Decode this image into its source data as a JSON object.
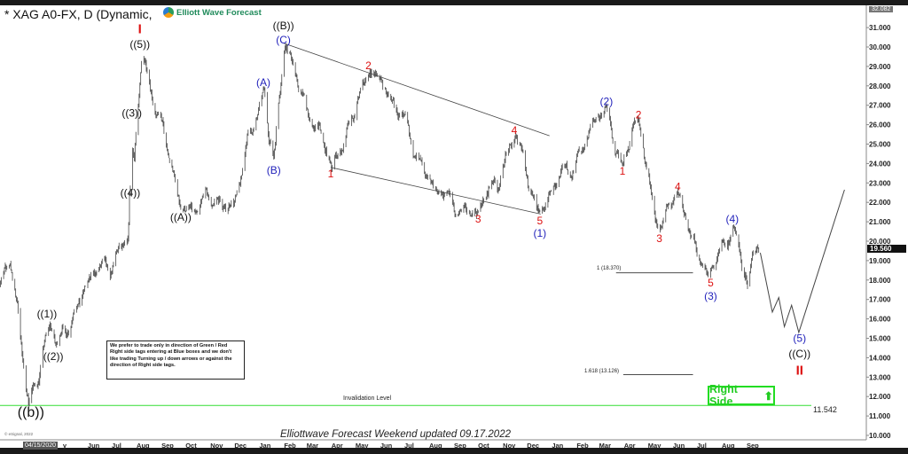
{
  "header": {
    "title": "* XAG A0-FX, D (Dynamic,",
    "logo_text": "Elliott Wave Forecast"
  },
  "note": "We prefer to trade only in direction of Green / Red Right side tags entering at Blue boxes and we don't like trading Turning up / down arrows or against the direction of Right side tags.",
  "right_side": {
    "label": "Right Side",
    "icon": "arrow-up-icon",
    "color": "#22cc22"
  },
  "footer": "Elliottwave Forecast Weekend updated 09.17.2022",
  "copyright": "© eSignal, 2022",
  "date_tag": "04/15/2020",
  "chart_data": {
    "type": "ohlc",
    "symbol": "XAG A0-FX",
    "interval": "D",
    "ylim": [
      10,
      31
    ],
    "y_ticks": [
      "31.000",
      "30.000",
      "29.000",
      "28.000",
      "27.000",
      "26.000",
      "25.000",
      "24.000",
      "23.000",
      "22.000",
      "21.000",
      "20.000",
      "19.000",
      "18.000",
      "17.000",
      "16.000",
      "15.000",
      "14.000",
      "13.000",
      "12.000",
      "11.000",
      "10.000"
    ],
    "top_tag": "32.082",
    "last_price": "19.560",
    "x_ticks": [
      {
        "label": "y",
        "date": "2020-05-01"
      },
      {
        "label": "Jun",
        "date": "2020-06-01"
      },
      {
        "label": "Jul",
        "date": "2020-07-01"
      },
      {
        "label": "Aug",
        "date": "2020-08-01"
      },
      {
        "label": "Sep",
        "date": "2020-09-01"
      },
      {
        "label": "Oct",
        "date": "2020-10-01"
      },
      {
        "label": "Nov",
        "date": "2020-11-01"
      },
      {
        "label": "Dec",
        "date": "2020-12-01"
      },
      {
        "label": "Jan",
        "date": "2021-01-01"
      },
      {
        "label": "Feb",
        "date": "2021-02-01"
      },
      {
        "label": "Mar",
        "date": "2021-03-01"
      },
      {
        "label": "Apr",
        "date": "2021-04-01"
      },
      {
        "label": "May",
        "date": "2021-05-01"
      },
      {
        "label": "Jun",
        "date": "2021-06-01"
      },
      {
        "label": "Jul",
        "date": "2021-07-01"
      },
      {
        "label": "Aug",
        "date": "2021-08-01"
      },
      {
        "label": "Sep",
        "date": "2021-09-01"
      },
      {
        "label": "Oct",
        "date": "2021-10-01"
      },
      {
        "label": "Nov",
        "date": "2021-11-01"
      },
      {
        "label": "Dec",
        "date": "2021-12-01"
      },
      {
        "label": "Jan",
        "date": "2022-01-01"
      },
      {
        "label": "Feb",
        "date": "2022-02-01"
      },
      {
        "label": "Mar",
        "date": "2022-03-01"
      },
      {
        "label": "Apr",
        "date": "2022-04-01"
      },
      {
        "label": "May",
        "date": "2022-05-01"
      },
      {
        "label": "Jun",
        "date": "2022-06-01"
      },
      {
        "label": "Jul",
        "date": "2022-07-01"
      },
      {
        "label": "Aug",
        "date": "2022-08-01"
      },
      {
        "label": "Sep",
        "date": "2022-09-01"
      }
    ],
    "price_pivots": [
      [
        "2020-01-27",
        18.0
      ],
      [
        "2020-02-10",
        17.8
      ],
      [
        "2020-02-24",
        18.9
      ],
      [
        "2020-03-18",
        11.7
      ],
      [
        "2020-04-14",
        15.7
      ],
      [
        "2020-04-21",
        14.6
      ],
      [
        "2020-06-01",
        18.0
      ],
      [
        "2020-07-20",
        20.0
      ],
      [
        "2020-07-24",
        23.2
      ],
      [
        "2020-07-28",
        24.3
      ],
      [
        "2020-08-07",
        29.85
      ],
      [
        "2020-09-24",
        21.7
      ],
      [
        "2020-11-30",
        22.0
      ],
      [
        "2021-01-06",
        27.9
      ],
      [
        "2021-01-18",
        24.3
      ],
      [
        "2021-02-01",
        30.1
      ],
      [
        "2021-03-31",
        23.8
      ],
      [
        "2021-05-18",
        28.7
      ],
      [
        "2021-06-01",
        28.3
      ],
      [
        "2021-08-09",
        22.5
      ],
      [
        "2021-09-29",
        21.4
      ],
      [
        "2021-11-16",
        25.4
      ],
      [
        "2021-12-15",
        21.4
      ],
      [
        "2022-03-08",
        26.9
      ],
      [
        "2022-03-29",
        24.0
      ],
      [
        "2022-04-18",
        26.2
      ],
      [
        "2022-05-13",
        20.5
      ],
      [
        "2022-06-06",
        22.5
      ],
      [
        "2022-07-14",
        18.1
      ],
      [
        "2022-08-15",
        20.8
      ],
      [
        "2022-09-01",
        17.6
      ],
      [
        "2022-09-14",
        19.8
      ],
      [
        "2022-09-16",
        19.56
      ]
    ],
    "projection": [
      [
        "2022-09-17",
        19.4
      ],
      [
        "2022-10-02",
        16.35
      ],
      [
        "2022-10-10",
        17.1
      ],
      [
        "2022-10-17",
        15.6
      ],
      [
        "2022-10-26",
        16.7
      ],
      [
        "2022-11-04",
        15.3
      ],
      [
        "2022-12-31",
        22.65
      ]
    ],
    "trendlines": [
      [
        [
          "2021-01-30",
          30.2
        ],
        [
          "2021-12-28",
          25.43
        ]
      ],
      [
        [
          "2021-03-30",
          23.8
        ],
        [
          "2021-12-17",
          21.4
        ]
      ]
    ],
    "levels": [
      {
        "label": "1 (18.370)",
        "value": 18.37,
        "from": "2022-03-21",
        "to": "2022-06-25"
      },
      {
        "label": "1.618 (13.126)",
        "value": 13.126,
        "from": "2022-03-30",
        "to": "2022-06-25"
      }
    ],
    "invalidation": {
      "label": "Invalidation Level",
      "value": 11.542,
      "value_label": "11.542",
      "color": "#33dd33"
    },
    "annotations": [
      {
        "text": "I",
        "date": "2020-08-04",
        "price": 30.9,
        "color": "#dd1111"
      },
      {
        "text": "((5))",
        "date": "2020-08-04",
        "price": 30.14,
        "color": "#111111"
      },
      {
        "text": "((3))",
        "date": "2020-07-25",
        "price": 26.6,
        "color": "#111111"
      },
      {
        "text": "((4))",
        "date": "2020-07-23",
        "price": 22.5,
        "color": "#111111"
      },
      {
        "text": "((1))",
        "date": "2020-04-10",
        "price": 16.26,
        "color": "#111111"
      },
      {
        "text": "((2))",
        "date": "2020-04-18",
        "price": 14.06,
        "color": "#111111"
      },
      {
        "text": "((b))",
        "date": "2020-03-21",
        "price": 11.14,
        "color": "#111111",
        "big": true
      },
      {
        "text": "((A))",
        "date": "2020-09-24",
        "price": 21.23,
        "color": "#111111"
      },
      {
        "text": "(A)",
        "date": "2021-01-05",
        "price": 28.17,
        "color": "#2222bb"
      },
      {
        "text": "(B)",
        "date": "2021-01-18",
        "price": 23.65,
        "color": "#2222bb"
      },
      {
        "text": "((B))",
        "date": "2021-01-30",
        "price": 31.0,
        "color": "#111111"
      },
      {
        "text": "(C)",
        "date": "2021-01-30",
        "price": 30.4,
        "color": "#2222bb"
      },
      {
        "text": "1",
        "date": "2021-03-30",
        "price": 23.47,
        "color": "#dd1111"
      },
      {
        "text": "2",
        "date": "2021-05-16",
        "price": 29.04,
        "color": "#dd1111"
      },
      {
        "text": "3",
        "date": "2021-09-30",
        "price": 21.14,
        "color": "#dd1111"
      },
      {
        "text": "4",
        "date": "2021-11-14",
        "price": 25.7,
        "color": "#dd1111"
      },
      {
        "text": "5",
        "date": "2021-12-16",
        "price": 21.05,
        "color": "#dd1111"
      },
      {
        "text": "(1)",
        "date": "2021-12-16",
        "price": 20.41,
        "color": "#2222bb"
      },
      {
        "text": "(2)",
        "date": "2022-03-09",
        "price": 27.2,
        "color": "#2222bb"
      },
      {
        "text": "1",
        "date": "2022-03-29",
        "price": 23.6,
        "color": "#dd1111"
      },
      {
        "text": "2",
        "date": "2022-04-18",
        "price": 26.5,
        "color": "#dd1111"
      },
      {
        "text": "3",
        "date": "2022-05-14",
        "price": 20.14,
        "color": "#dd1111"
      },
      {
        "text": "4",
        "date": "2022-06-06",
        "price": 22.8,
        "color": "#dd1111"
      },
      {
        "text": "5",
        "date": "2022-07-17",
        "price": 17.85,
        "color": "#dd1111"
      },
      {
        "text": "(3)",
        "date": "2022-07-17",
        "price": 17.26,
        "color": "#2222bb"
      },
      {
        "text": "(4)",
        "date": "2022-08-13",
        "price": 21.14,
        "color": "#2222bb"
      },
      {
        "text": "(5)",
        "date": "2022-11-05",
        "price": 14.9,
        "color": "#2222bb"
      },
      {
        "text": "((C))",
        "date": "2022-11-05",
        "price": 14.2,
        "color": "#111111"
      },
      {
        "text": "II",
        "date": "2022-11-05",
        "price": 13.5,
        "color": "#dd1111"
      }
    ]
  }
}
